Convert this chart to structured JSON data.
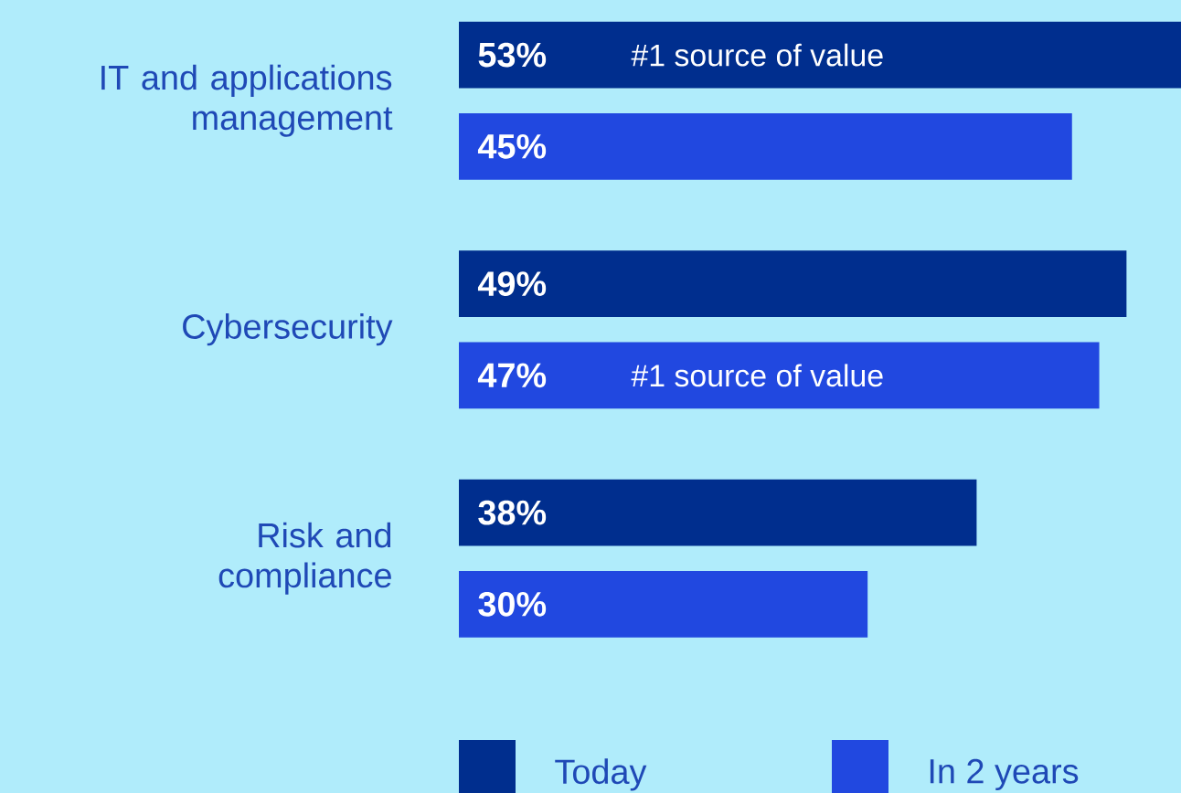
{
  "chart_data": {
    "type": "bar",
    "orientation": "horizontal",
    "categories": [
      "IT and applications management",
      "Cybersecurity",
      "Risk and compliance"
    ],
    "series": [
      {
        "name": "Today",
        "color": "#002e8e",
        "values": [
          53,
          49,
          38
        ],
        "value_labels": [
          "53%",
          "49%",
          "38%"
        ]
      },
      {
        "name": "In 2 years",
        "color": "#2148e0",
        "values": [
          45,
          47,
          30
        ],
        "value_labels": [
          "45%",
          "47%",
          "30%"
        ]
      }
    ],
    "xlim": [
      0,
      53
    ],
    "annotations": [
      "#1 source of value",
      "#1 source of value"
    ],
    "legend": "bottom"
  }
}
